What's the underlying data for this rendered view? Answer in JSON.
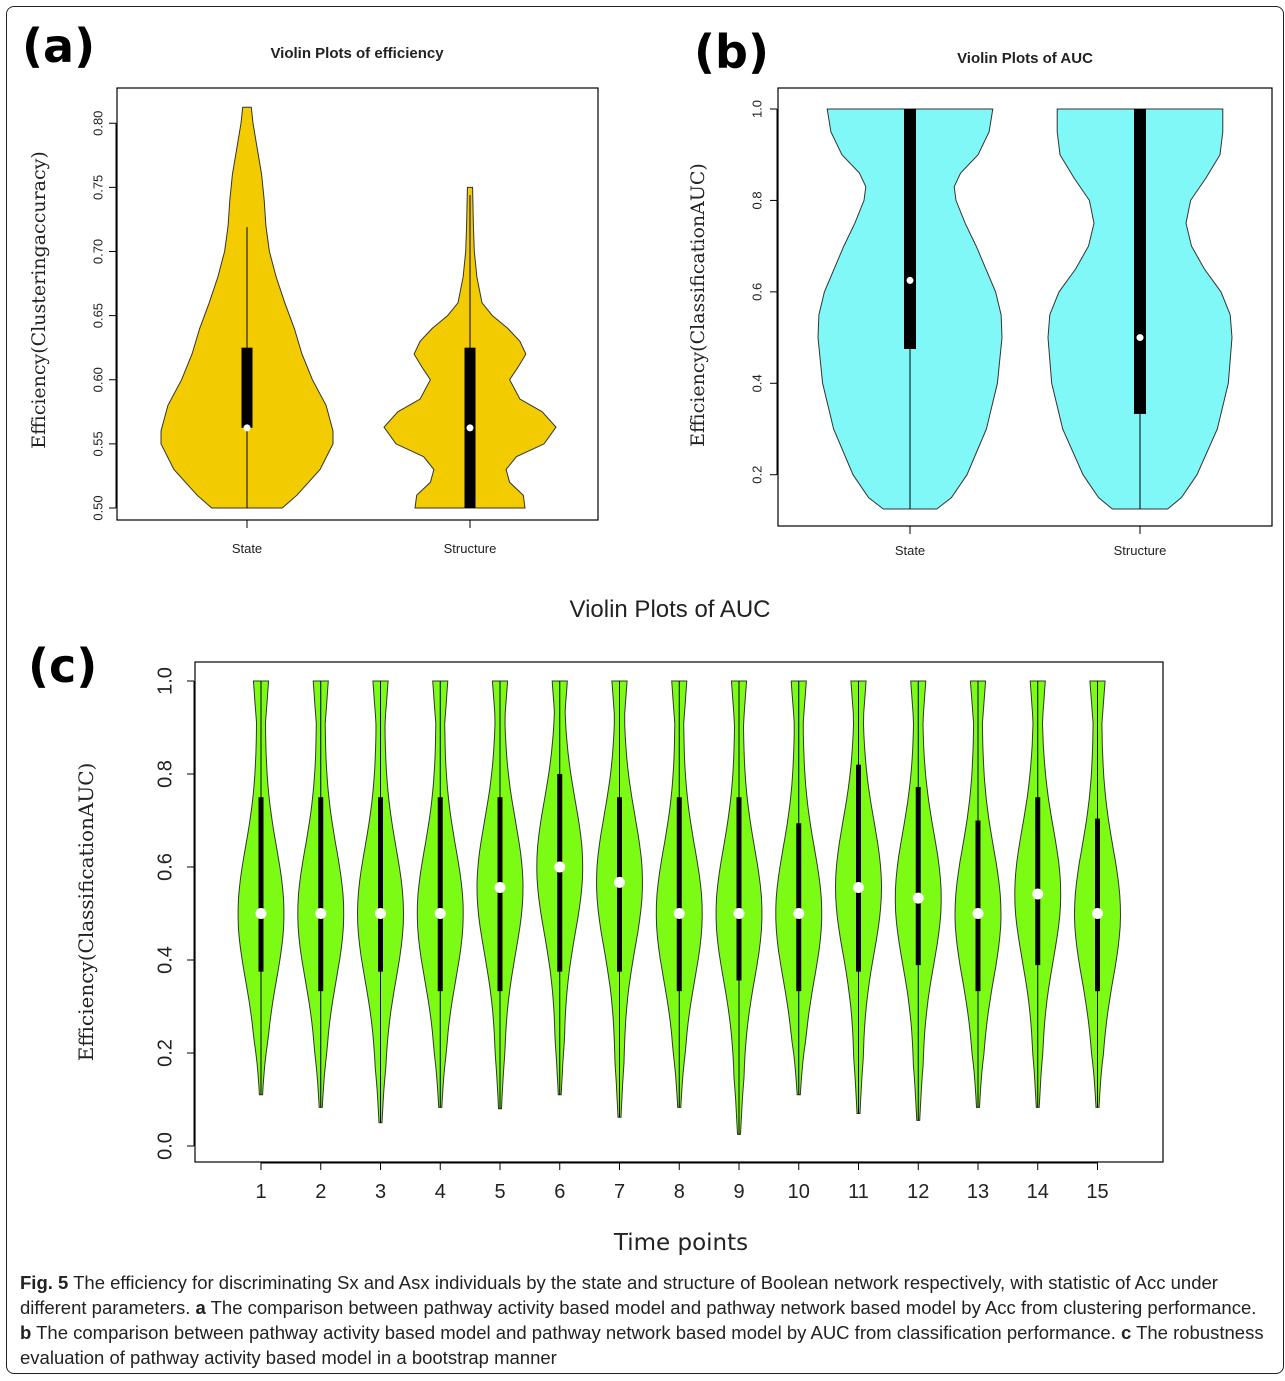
{
  "figure": {
    "panel_labels": [
      "(a)",
      "(b)",
      "(c)"
    ],
    "caption": {
      "fig_label": "Fig. 5",
      "main": " The efficiency for discriminating Sx and Asx individuals by the state and structure of Boolean network respectively, with statistic of Acc under different parameters. ",
      "a_label": "a",
      "a_text": " The comparison between pathway activity based model and pathway network based model by Acc from clustering performance. ",
      "b_label": "b",
      "b_text": " The comparison between pathway activity based model and pathway network based model by AUC from classification performance. ",
      "c_label": "c",
      "c_text": " The robustness evaluation of pathway activity based model in a bootstrap manner"
    }
  },
  "chart_data": [
    {
      "panel": "(a)",
      "type": "violin",
      "title": "Violin Plots of efficiency",
      "xlabel": "",
      "ylabel": "Efficiency(Clusteringaccuracy)",
      "ylim": [
        0.5,
        0.815
      ],
      "yticks": [
        "0.50",
        "0.55",
        "0.60",
        "0.65",
        "0.70",
        "0.75",
        "0.80"
      ],
      "fill_color": "#f2cc00",
      "categories": [
        "State",
        "Structure"
      ],
      "violins": [
        {
          "category": "State",
          "min": 0.5,
          "max": 0.8125,
          "q1": 0.5625,
          "q3": 0.625,
          "median": 0.5625,
          "whisker_high": 0.719,
          "density": [
            [
              0.5,
              0.41
            ],
            [
              0.51,
              0.58
            ],
            [
              0.53,
              0.85
            ],
            [
              0.55,
              1.0
            ],
            [
              0.56,
              1.0
            ],
            [
              0.58,
              0.92
            ],
            [
              0.6,
              0.76
            ],
            [
              0.62,
              0.64
            ],
            [
              0.64,
              0.55
            ],
            [
              0.66,
              0.44
            ],
            [
              0.68,
              0.34
            ],
            [
              0.7,
              0.26
            ],
            [
              0.72,
              0.22
            ],
            [
              0.74,
              0.2
            ],
            [
              0.76,
              0.17
            ],
            [
              0.78,
              0.12
            ],
            [
              0.8,
              0.07
            ],
            [
              0.8125,
              0.05
            ]
          ]
        },
        {
          "category": "Structure",
          "min": 0.5,
          "max": 0.75,
          "q1": 0.5,
          "q3": 0.625,
          "median": 0.5625,
          "whisker_high": 0.744,
          "density": [
            [
              0.5,
              0.64
            ],
            [
              0.51,
              0.62
            ],
            [
              0.52,
              0.46
            ],
            [
              0.53,
              0.42
            ],
            [
              0.54,
              0.54
            ],
            [
              0.55,
              0.86
            ],
            [
              0.563,
              1.0
            ],
            [
              0.575,
              0.84
            ],
            [
              0.585,
              0.58
            ],
            [
              0.6,
              0.46
            ],
            [
              0.61,
              0.56
            ],
            [
              0.62,
              0.65
            ],
            [
              0.63,
              0.58
            ],
            [
              0.64,
              0.44
            ],
            [
              0.65,
              0.26
            ],
            [
              0.66,
              0.14
            ],
            [
              0.68,
              0.08
            ],
            [
              0.7,
              0.05
            ],
            [
              0.72,
              0.04
            ],
            [
              0.75,
              0.03
            ]
          ]
        }
      ]
    },
    {
      "panel": "(b)",
      "type": "violin",
      "title": "Violin Plots of AUC",
      "xlabel": "",
      "ylabel": "Efficiency(ClassificationAUC)",
      "ylim": [
        0.125,
        1.0
      ],
      "yticks": [
        "0.2",
        "0.4",
        "0.6",
        "0.8",
        "1.0"
      ],
      "fill_color": "#80f8f8",
      "categories": [
        "State",
        "Structure"
      ],
      "violins": [
        {
          "category": "State",
          "min": 0.125,
          "max": 1.0,
          "q1": 0.475,
          "q3": 1.0,
          "median": 0.625,
          "whisker_low": 0.125,
          "density": [
            [
              0.125,
              0.29
            ],
            [
              0.15,
              0.45
            ],
            [
              0.2,
              0.62
            ],
            [
              0.3,
              0.83
            ],
            [
              0.4,
              0.95
            ],
            [
              0.5,
              1.0
            ],
            [
              0.55,
              0.99
            ],
            [
              0.6,
              0.93
            ],
            [
              0.7,
              0.72
            ],
            [
              0.75,
              0.6
            ],
            [
              0.8,
              0.5
            ],
            [
              0.83,
              0.48
            ],
            [
              0.86,
              0.55
            ],
            [
              0.9,
              0.74
            ],
            [
              0.95,
              0.86
            ],
            [
              1.0,
              0.9
            ]
          ]
        },
        {
          "category": "Structure",
          "min": 0.125,
          "max": 1.0,
          "q1": 0.333,
          "q3": 1.0,
          "median": 0.5,
          "whisker_low": 0.125,
          "density": [
            [
              0.125,
              0.3
            ],
            [
              0.15,
              0.45
            ],
            [
              0.2,
              0.62
            ],
            [
              0.3,
              0.84
            ],
            [
              0.4,
              0.96
            ],
            [
              0.5,
              1.0
            ],
            [
              0.55,
              0.98
            ],
            [
              0.6,
              0.88
            ],
            [
              0.65,
              0.7
            ],
            [
              0.7,
              0.56
            ],
            [
              0.75,
              0.5
            ],
            [
              0.8,
              0.55
            ],
            [
              0.85,
              0.72
            ],
            [
              0.9,
              0.87
            ],
            [
              0.95,
              0.9
            ],
            [
              1.0,
              0.9
            ]
          ]
        }
      ]
    },
    {
      "panel": "(c)",
      "type": "violin",
      "title": "Violin Plots of AUC",
      "xlabel": "Time points",
      "ylabel": "Efficiency(ClassificationAUC)",
      "ylim": [
        0.0,
        1.0
      ],
      "yticks": [
        "0.0",
        "0.2",
        "0.4",
        "0.6",
        "0.8",
        "1.0"
      ],
      "fill_color": "#7cfc14",
      "categories": [
        "1",
        "2",
        "3",
        "4",
        "5",
        "6",
        "7",
        "8",
        "9",
        "10",
        "11",
        "12",
        "13",
        "14",
        "15"
      ],
      "violins": [
        {
          "category": "1",
          "min": 0.11,
          "max": 1.0,
          "q1": 0.375,
          "q3": 0.75,
          "median": 0.5
        },
        {
          "category": "2",
          "min": 0.083,
          "max": 1.0,
          "q1": 0.333,
          "q3": 0.75,
          "median": 0.5
        },
        {
          "category": "3",
          "min": 0.05,
          "max": 1.0,
          "q1": 0.375,
          "q3": 0.75,
          "median": 0.5
        },
        {
          "category": "4",
          "min": 0.083,
          "max": 1.0,
          "q1": 0.333,
          "q3": 0.75,
          "median": 0.5
        },
        {
          "category": "5",
          "min": 0.08,
          "max": 1.0,
          "q1": 0.333,
          "q3": 0.75,
          "median": 0.556
        },
        {
          "category": "6",
          "min": 0.11,
          "max": 1.0,
          "q1": 0.375,
          "q3": 0.8,
          "median": 0.6
        },
        {
          "category": "7",
          "min": 0.062,
          "max": 1.0,
          "q1": 0.375,
          "q3": 0.75,
          "median": 0.567
        },
        {
          "category": "8",
          "min": 0.083,
          "max": 1.0,
          "q1": 0.333,
          "q3": 0.75,
          "median": 0.5
        },
        {
          "category": "9",
          "min": 0.025,
          "max": 1.0,
          "q1": 0.356,
          "q3": 0.75,
          "median": 0.5
        },
        {
          "category": "10",
          "min": 0.11,
          "max": 1.0,
          "q1": 0.333,
          "q3": 0.694,
          "median": 0.5
        },
        {
          "category": "11",
          "min": 0.07,
          "max": 1.0,
          "q1": 0.375,
          "q3": 0.82,
          "median": 0.556
        },
        {
          "category": "12",
          "min": 0.055,
          "max": 1.0,
          "q1": 0.389,
          "q3": 0.772,
          "median": 0.533
        },
        {
          "category": "13",
          "min": 0.083,
          "max": 1.0,
          "q1": 0.333,
          "q3": 0.7,
          "median": 0.5
        },
        {
          "category": "14",
          "min": 0.083,
          "max": 1.0,
          "q1": 0.389,
          "q3": 0.75,
          "median": 0.542
        },
        {
          "category": "15",
          "min": 0.083,
          "max": 1.0,
          "q1": 0.333,
          "q3": 0.704,
          "median": 0.5
        }
      ]
    }
  ]
}
